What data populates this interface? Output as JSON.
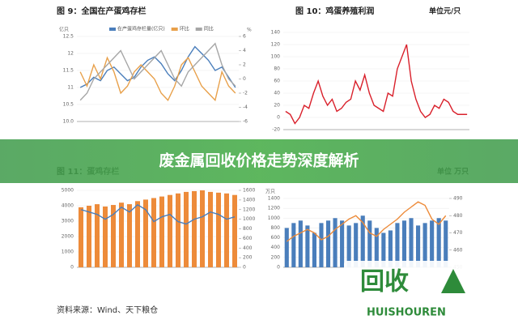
{
  "chart_data": [
    {
      "type": "combo",
      "title": "图 9：全国在产蛋鸡存栏",
      "y_label": "亿只",
      "y2_label": "%",
      "ylim": [
        10,
        12.5
      ],
      "yticks": [
        {
          "value": 10,
          "label": "10.0"
        },
        {
          "value": 10.5,
          "label": "10.5"
        },
        11,
        {
          "value": 11.5,
          "label": "11.5"
        },
        12,
        {
          "value": 12.5,
          "label": "12.5"
        }
      ],
      "y2lim": [
        -6,
        6
      ],
      "y2ticks": [
        -6,
        -4,
        -2,
        0,
        2,
        4,
        6
      ],
      "series": [
        {
          "name": "在产蛋鸡存栏量(亿只)",
          "type": "line",
          "color": "#4a7ebb",
          "values": [
            11.0,
            11.1,
            11.3,
            11.2,
            11.5,
            11.6,
            11.4,
            11.2,
            11.3,
            11.6,
            11.8,
            11.9,
            11.7,
            11.4,
            11.2,
            11.5,
            11.9,
            12.2,
            12.0,
            11.8,
            11.5,
            11.6,
            11.3,
            11.0
          ]
        },
        {
          "name": "环比",
          "type": "line",
          "color": "#e8a04a",
          "axis": "y2",
          "values": [
            1,
            -1,
            2,
            0,
            3,
            1,
            -2,
            -1,
            1,
            2,
            1,
            0,
            -2,
            -3,
            -1,
            2,
            3,
            1,
            -1,
            -2,
            -3,
            1,
            -1,
            -2
          ]
        },
        {
          "name": "同比",
          "type": "line",
          "color": "#a6a6a6",
          "axis": "y2",
          "values": [
            -3,
            -2,
            0,
            1,
            2,
            3,
            4,
            2,
            0,
            1,
            2,
            3,
            4,
            2,
            0,
            -1,
            1,
            2,
            3,
            4,
            5,
            2,
            0,
            -1
          ]
        }
      ]
    },
    {
      "type": "combo",
      "title": "图 10：鸡蛋养殖利润",
      "unit": "单位元/只",
      "ylim": [
        -20,
        140
      ],
      "yticks": [
        -20,
        0,
        20,
        40,
        60,
        80,
        100,
        120,
        140
      ],
      "series": [
        {
          "type": "line",
          "color": "#d9202b",
          "values": [
            10,
            5,
            -10,
            0,
            20,
            15,
            40,
            60,
            35,
            20,
            30,
            10,
            15,
            25,
            30,
            60,
            45,
            70,
            40,
            20,
            15,
            10,
            40,
            35,
            80,
            100,
            120,
            60,
            30,
            10,
            0,
            5,
            20,
            15,
            30,
            25,
            10,
            5,
            5,
            5
          ]
        }
      ]
    },
    {
      "type": "combo",
      "title": "图 11：蛋鸡存栏",
      "ylim": [
        0,
        5000
      ],
      "yticks": [
        0,
        1000,
        2000,
        3000,
        4000,
        5000
      ],
      "y2lim": [
        0,
        1600
      ],
      "y2ticks": [
        0,
        200,
        400,
        600,
        800,
        1000,
        1200,
        1400,
        1600
      ],
      "series": [
        {
          "type": "bar",
          "color": "#ed8b3a",
          "values": [
            3900,
            4000,
            4100,
            3950,
            4050,
            4200,
            4100,
            4300,
            4400,
            4500,
            4600,
            4700,
            4800,
            4900,
            4950,
            5000,
            4900,
            4850,
            4800,
            4700
          ]
        },
        {
          "type": "line",
          "color": "#4a7ebb",
          "axis": "y2",
          "values": [
            1200,
            1150,
            1100,
            1000,
            1100,
            1250,
            1150,
            1300,
            1200,
            950,
            1050,
            1100,
            950,
            900,
            1000,
            1050,
            1150,
            1100,
            1000,
            1050
          ]
        }
      ]
    },
    {
      "type": "combo",
      "unit": "单位 万只",
      "y_label": "万只",
      "ylim": [
        0,
        1400
      ],
      "yticks": [
        0,
        200,
        400,
        600,
        800,
        1000,
        1200,
        1400
      ],
      "y2lim": [
        450,
        490
      ],
      "y2ticks": [
        450,
        460,
        470,
        480,
        490
      ],
      "series": [
        {
          "type": "bar",
          "color": "#4a7ebb",
          "values": [
            800,
            900,
            950,
            850,
            700,
            900,
            950,
            1000,
            950,
            850,
            900,
            1050,
            950,
            800,
            700,
            750,
            900,
            950,
            1000,
            850,
            900,
            950,
            1000,
            950
          ]
        },
        {
          "type": "line",
          "color": "#ed8b3a",
          "axis": "y2",
          "values": [
            465,
            468,
            470,
            472,
            470,
            466,
            468,
            472,
            475,
            478,
            480,
            476,
            470,
            468,
            472,
            475,
            478,
            482,
            485,
            488,
            486,
            478,
            475,
            480
          ]
        }
      ]
    }
  ],
  "banner": {
    "title": "废金属回收价格走势深度解析"
  },
  "source": "资料来源：Wind、天下粮仓",
  "logo": {
    "text": "回收",
    "subtext": "HUISHOUREN"
  }
}
